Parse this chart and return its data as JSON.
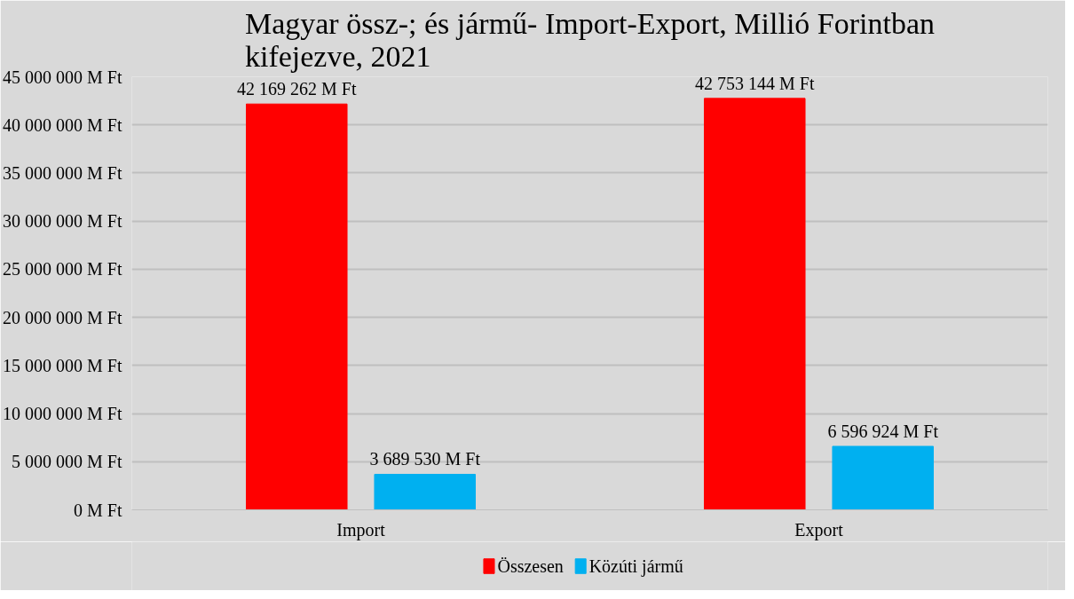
{
  "chart_data": {
    "type": "bar",
    "title": "Magyar össz-; és jármű- Import-Export, Millió Forintban kifejezve, 2021",
    "categories": [
      "Import",
      "Export"
    ],
    "series": [
      {
        "name": "Összesen",
        "color": "#ff0000",
        "values": [
          42169262,
          42753144
        ],
        "value_labels": [
          "42 169 262 M Ft",
          "42 753 144 M Ft"
        ]
      },
      {
        "name": "Közúti jármű",
        "color": "#00b0f0",
        "values": [
          3689530,
          6596924
        ],
        "value_labels": [
          "3 689 530 M Ft",
          "6 596 924 M Ft"
        ]
      }
    ],
    "ylim": [
      0,
      45000000
    ],
    "yticks": [
      {
        "value": 0,
        "label": "0 M Ft"
      },
      {
        "value": 5000000,
        "label": "5 000 000 M Ft"
      },
      {
        "value": 10000000,
        "label": "10 000 000 M Ft"
      },
      {
        "value": 15000000,
        "label": "15 000 000 M Ft"
      },
      {
        "value": 20000000,
        "label": "20 000 000 M Ft"
      },
      {
        "value": 25000000,
        "label": "25 000 000 M Ft"
      },
      {
        "value": 30000000,
        "label": "30 000 000 M Ft"
      },
      {
        "value": 35000000,
        "label": "35 000 000 M Ft"
      },
      {
        "value": 40000000,
        "label": "40 000 000 M Ft"
      },
      {
        "value": 45000000,
        "label": "45 000 000 M Ft"
      }
    ],
    "grid": "y",
    "legend": "bottom"
  }
}
